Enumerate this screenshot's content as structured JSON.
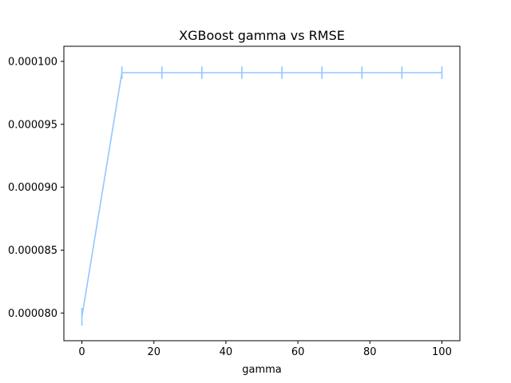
{
  "chart_data": {
    "type": "line",
    "title": "XGBoost gamma vs RMSE",
    "xlabel": "gamma",
    "ylabel": "",
    "xlim": [
      -5,
      105
    ],
    "ylim": [
      7.78e-05,
      0.0001012
    ],
    "xticks": [
      0,
      20,
      40,
      60,
      80,
      100
    ],
    "xtick_labels": [
      "0",
      "20",
      "40",
      "60",
      "80",
      "100"
    ],
    "yticks": [
      8e-05,
      8.5e-05,
      9e-05,
      9.5e-05,
      0.0001
    ],
    "ytick_labels": [
      "0.000080",
      "0.000085",
      "0.000090",
      "0.000095",
      "0.000100"
    ],
    "grid": false,
    "series": [
      {
        "color": "#92c6ff",
        "x": [
          0,
          11.11,
          22.22,
          33.33,
          44.44,
          55.56,
          66.67,
          77.78,
          88.89,
          100
        ],
        "y": [
          7.97e-05,
          9.91e-05,
          9.91e-05,
          9.91e-05,
          9.91e-05,
          9.91e-05,
          9.91e-05,
          9.91e-05,
          9.91e-05,
          9.91e-05
        ],
        "yerr": [
          7e-07,
          5e-07,
          5e-07,
          5e-07,
          5e-07,
          5e-07,
          5e-07,
          5e-07,
          5e-07,
          5e-07
        ]
      }
    ]
  }
}
